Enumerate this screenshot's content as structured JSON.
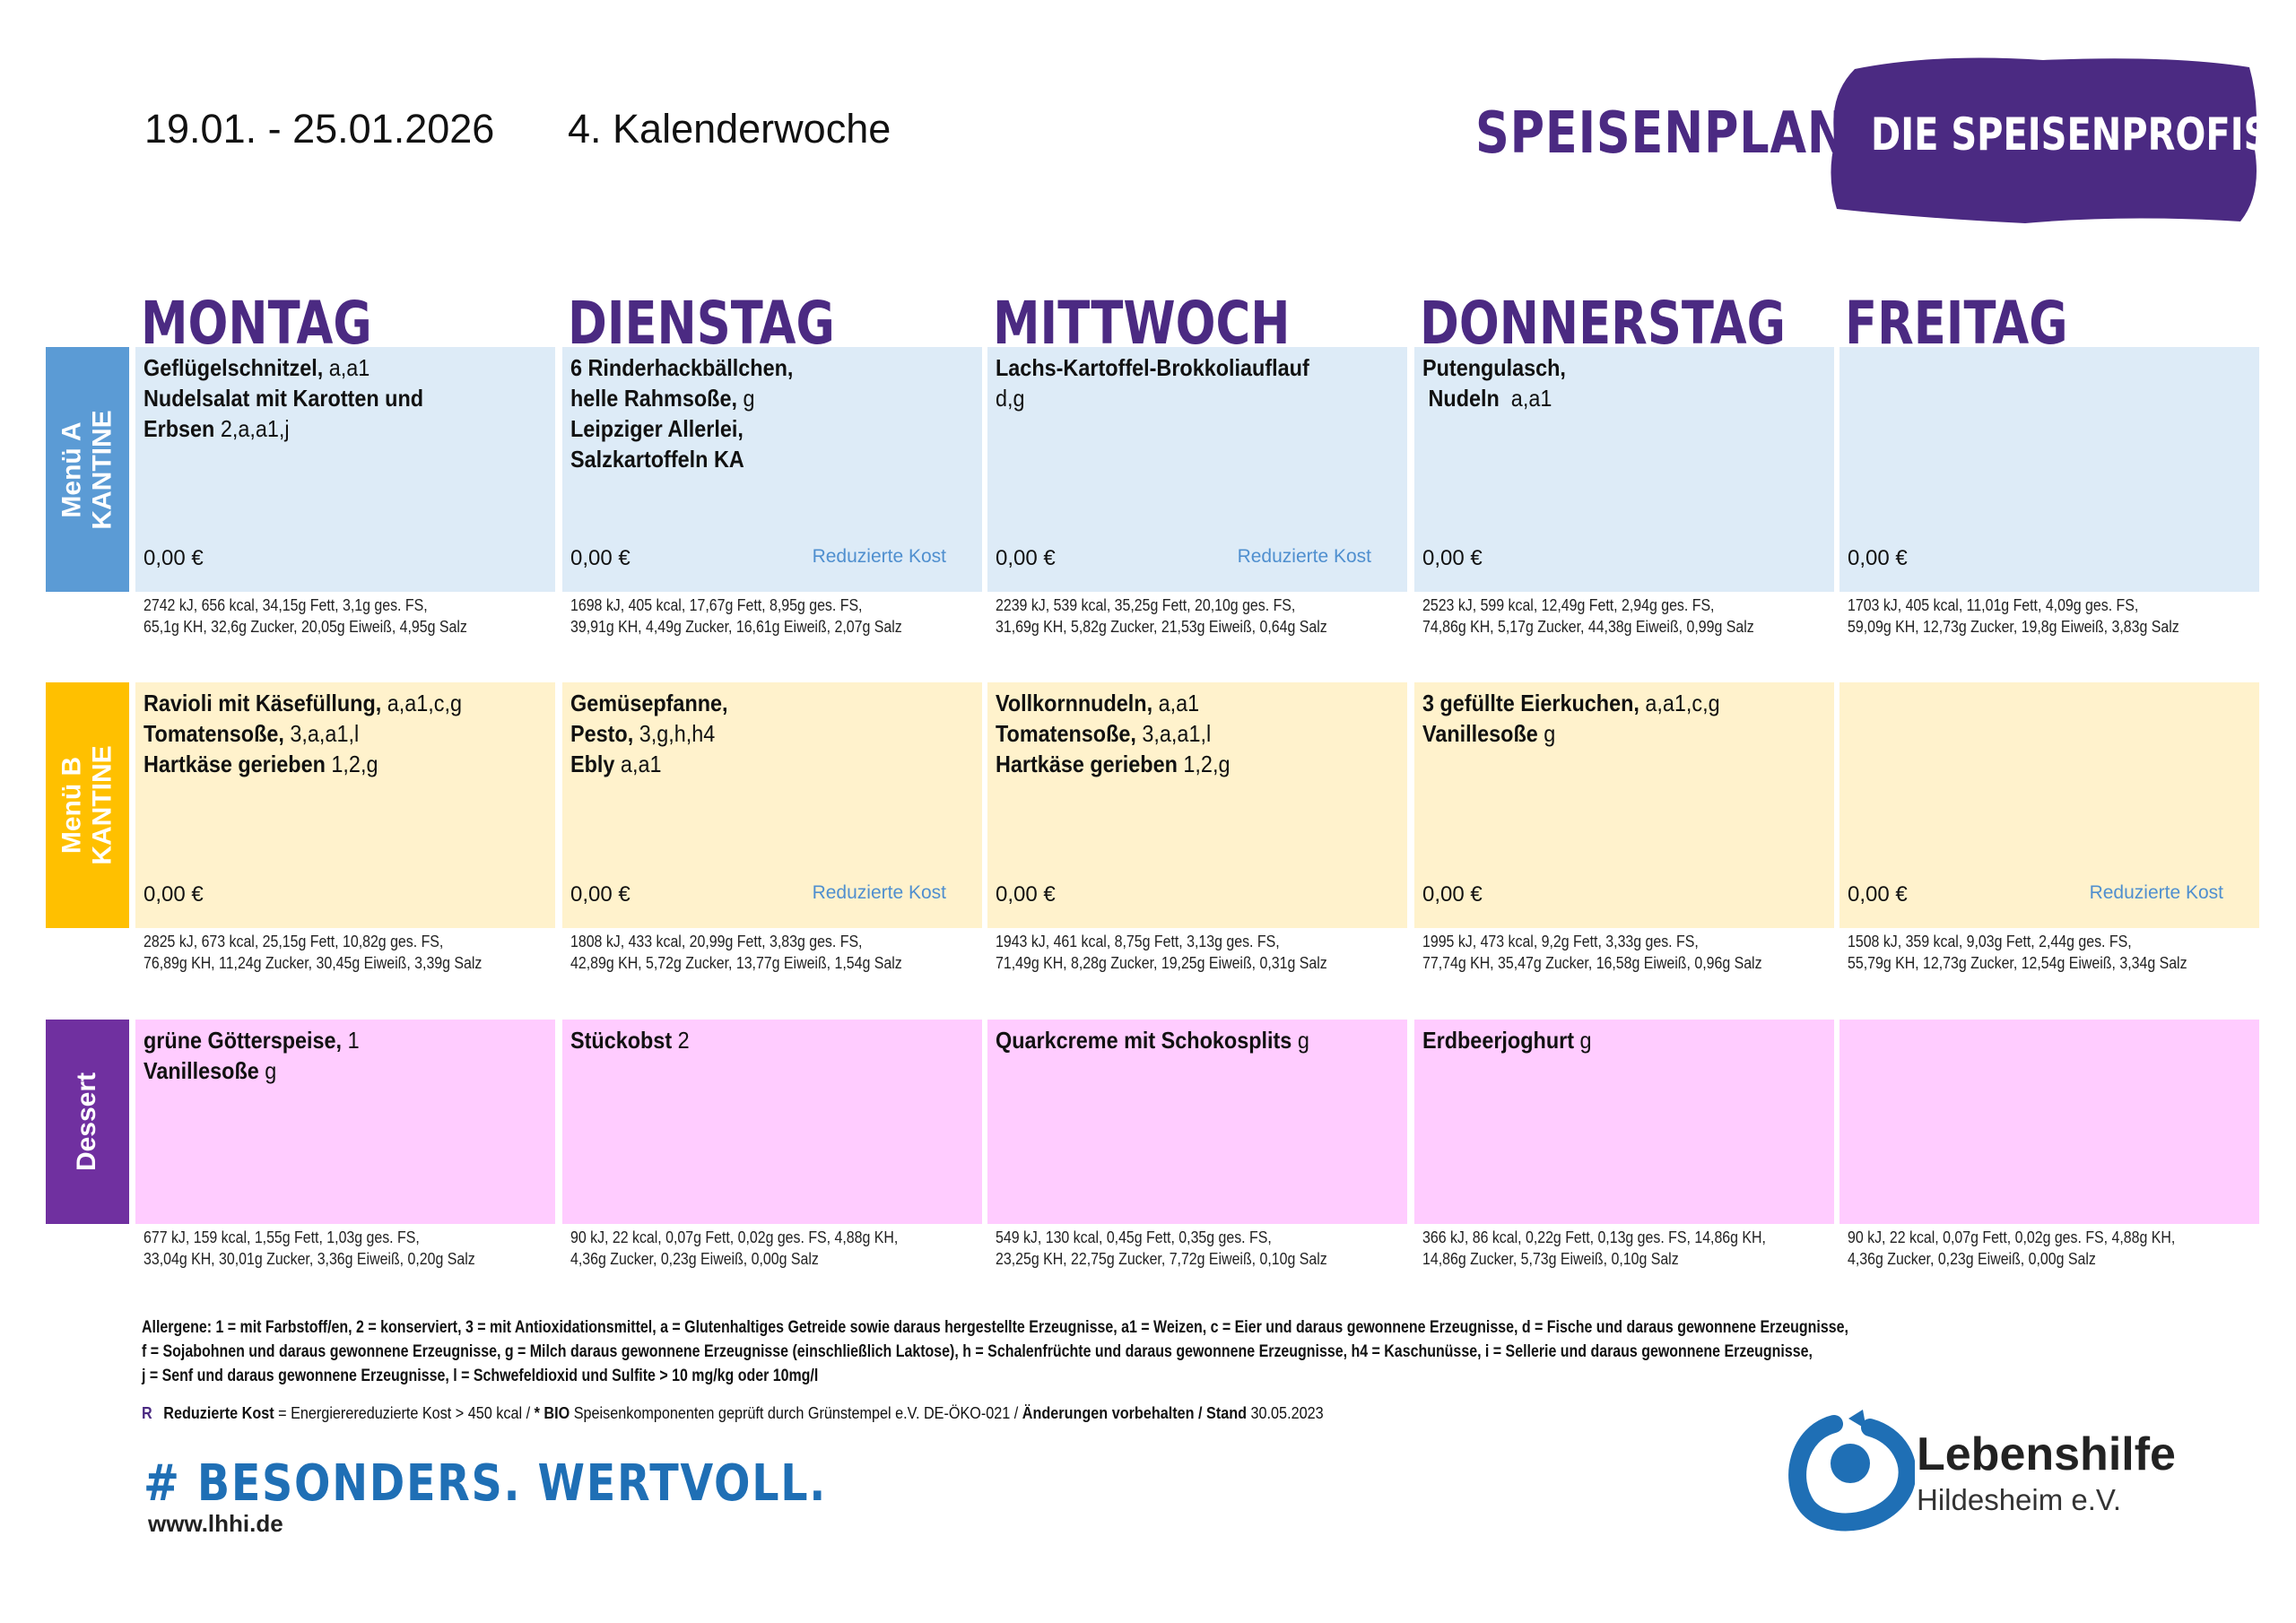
{
  "header": {
    "date_range": "19.01. - 25.01.2026",
    "calendar_week": "4. Kalenderwoche",
    "title": "SPEISENPLAN",
    "brand": "DIE SPEISENPROFIS"
  },
  "colors": {
    "purple": "#4b2a82",
    "menu_a_side": "#5b9bd5",
    "menu_a_bg": "#ddebf7",
    "menu_b_side": "#ffc000",
    "menu_b_bg": "#fff2cc",
    "dessert_side": "#7030a0",
    "dessert_bg": "#ffccff",
    "reduced_text": "#4f8fcf"
  },
  "days": [
    "MONTAG",
    "DIENSTAG",
    "MITTWOCH",
    "DONNERSTAG",
    "FREITAG"
  ],
  "rows": [
    {
      "label": [
        "Menü A",
        "KANTINE"
      ],
      "cells": [
        {
          "lines": [
            [
              {
                "b": "Geflügelschnitzel,"
              },
              {
                "n": " a,a1"
              }
            ],
            [
              {
                "b": "Nudelsalat mit Karotten und"
              }
            ],
            [
              {
                "b": "Erbsen"
              },
              {
                "n": " 2,a,a1,j"
              }
            ]
          ],
          "price": "0,00 €",
          "reduced": "",
          "nutrition": [
            "2742 kJ, 656 kcal, 34,15g Fett, 3,1g ges. FS,",
            "65,1g KH, 32,6g Zucker, 20,05g Eiweiß, 4,95g Salz"
          ]
        },
        {
          "lines": [
            [
              {
                "b": "6 Rinderhackbällchen,"
              }
            ],
            [
              {
                "b": "helle Rahmsoße,"
              },
              {
                "n": " g"
              }
            ],
            [
              {
                "b": "Leipziger Allerlei,"
              }
            ],
            [
              {
                "b": "Salzkartoffeln KA"
              }
            ]
          ],
          "price": "0,00 €",
          "reduced": "Reduzierte Kost",
          "nutrition": [
            "1698 kJ, 405 kcal, 17,67g Fett, 8,95g ges. FS,",
            "39,91g KH, 4,49g Zucker, 16,61g Eiweiß, 2,07g Salz"
          ]
        },
        {
          "lines": [
            [
              {
                "b": "Lachs-Kartoffel-Brokkoliauflauf"
              }
            ],
            [
              {
                "n": "d,g"
              }
            ]
          ],
          "price": "0,00 €",
          "reduced": "Reduzierte Kost",
          "nutrition": [
            "2239 kJ, 539 kcal, 35,25g Fett, 20,10g ges. FS,",
            "31,69g KH, 5,82g Zucker, 21,53g Eiweiß, 0,64g Salz"
          ]
        },
        {
          "lines": [
            [
              {
                "b": "Putengulasch,"
              }
            ],
            [
              {
                "b": " Nudeln"
              },
              {
                "n": "  a,a1"
              }
            ]
          ],
          "price": "0,00 €",
          "reduced": "",
          "nutrition": [
            "2523 kJ, 599 kcal, 12,49g Fett, 2,94g ges. FS,",
            "74,86g KH, 5,17g Zucker, 44,38g Eiweiß, 0,99g Salz"
          ]
        },
        {
          "lines": [],
          "price": "0,00 €",
          "reduced": "",
          "nutrition": [
            "1703 kJ, 405 kcal, 11,01g Fett, 4,09g ges. FS,",
            "59,09g KH, 12,73g Zucker, 19,8g Eiweiß, 3,83g Salz"
          ]
        }
      ]
    },
    {
      "label": [
        "Menü B",
        "KANTINE"
      ],
      "cells": [
        {
          "lines": [
            [
              {
                "b": "Ravioli mit Käsefüllung,"
              },
              {
                "n": " a,a1,c,g"
              }
            ],
            [
              {
                "b": "Tomatensoße,"
              },
              {
                "n": " 3,a,a1,l"
              }
            ],
            [
              {
                "b": "Hartkäse gerieben"
              },
              {
                "n": " 1,2,g"
              }
            ]
          ],
          "price": "0,00 €",
          "reduced": "",
          "nutrition": [
            "2825 kJ, 673 kcal, 25,15g Fett, 10,82g ges. FS,",
            "76,89g KH, 11,24g Zucker, 30,45g Eiweiß, 3,39g Salz"
          ]
        },
        {
          "lines": [
            [
              {
                "b": "Gemüsepfanne,"
              }
            ],
            [
              {
                "b": "Pesto,"
              },
              {
                "n": " 3,g,h,h4"
              }
            ],
            [
              {
                "b": "Ebly"
              },
              {
                "n": " a,a1"
              }
            ]
          ],
          "price": "0,00 €",
          "reduced": "Reduzierte Kost",
          "nutrition": [
            "1808 kJ, 433 kcal, 20,99g Fett, 3,83g ges. FS,",
            "42,89g KH, 5,72g Zucker, 13,77g Eiweiß, 1,54g Salz"
          ]
        },
        {
          "lines": [
            [
              {
                "b": "Vollkornnudeln,"
              },
              {
                "n": " a,a1"
              }
            ],
            [
              {
                "b": "Tomatensoße,"
              },
              {
                "n": " 3,a,a1,l"
              }
            ],
            [
              {
                "b": "Hartkäse gerieben"
              },
              {
                "n": " 1,2,g"
              }
            ]
          ],
          "price": "0,00 €",
          "reduced": "",
          "nutrition": [
            "1943 kJ, 461 kcal, 8,75g Fett, 3,13g ges. FS,",
            "71,49g KH, 8,28g Zucker, 19,25g Eiweiß, 0,31g Salz"
          ]
        },
        {
          "lines": [
            [
              {
                "b": "3 gefüllte Eierkuchen,"
              },
              {
                "n": " a,a1,c,g"
              }
            ],
            [
              {
                "b": "Vanillesoße"
              },
              {
                "n": " g"
              }
            ]
          ],
          "price": "0,00 €",
          "reduced": "",
          "nutrition": [
            "1995 kJ, 473 kcal, 9,2g Fett, 3,33g ges. FS,",
            "77,74g KH, 35,47g Zucker, 16,58g Eiweiß, 0,96g Salz"
          ]
        },
        {
          "lines": [],
          "price": "0,00 €",
          "reduced": "Reduzierte Kost",
          "nutrition": [
            "1508 kJ, 359 kcal, 9,03g Fett, 2,44g ges. FS,",
            "55,79g KH, 12,73g Zucker, 12,54g Eiweiß, 3,34g Salz"
          ]
        }
      ]
    },
    {
      "label": [
        "Dessert"
      ],
      "cells": [
        {
          "lines": [
            [
              {
                "b": "grüne Götterspeise,"
              },
              {
                "n": " 1"
              }
            ],
            [
              {
                "b": "Vanillesoße"
              },
              {
                "n": " g"
              }
            ]
          ],
          "price": "",
          "reduced": "",
          "nutrition": [
            "677 kJ, 159 kcal, 1,55g Fett, 1,03g ges. FS,",
            "33,04g KH, 30,01g Zucker, 3,36g Eiweiß, 0,20g Salz"
          ]
        },
        {
          "lines": [
            [
              {
                "b": "Stückobst"
              },
              {
                "n": " 2"
              }
            ]
          ],
          "price": "",
          "reduced": "",
          "nutrition": [
            "90 kJ, 22 kcal, 0,07g Fett, 0,02g ges. FS, 4,88g KH,",
            "4,36g Zucker, 0,23g Eiweiß, 0,00g Salz"
          ]
        },
        {
          "lines": [
            [
              {
                "b": "Quarkcreme mit Schokosplits"
              },
              {
                "n": " g"
              }
            ]
          ],
          "price": "",
          "reduced": "",
          "nutrition": [
            "549 kJ, 130 kcal, 0,45g Fett, 0,35g ges. FS,",
            "23,25g KH, 22,75g Zucker, 7,72g Eiweiß, 0,10g Salz"
          ]
        },
        {
          "lines": [
            [
              {
                "b": "Erdbeerjoghurt"
              },
              {
                "n": " g"
              }
            ]
          ],
          "price": "",
          "reduced": "",
          "nutrition": [
            "366 kJ, 86 kcal, 0,22g Fett, 0,13g ges. FS, 14,86g KH,",
            "14,86g Zucker, 5,73g Eiweiß, 0,10g Salz"
          ]
        },
        {
          "lines": [],
          "price": "",
          "reduced": "",
          "nutrition": [
            "90 kJ, 22 kcal, 0,07g Fett, 0,02g ges. FS, 4,88g KH,",
            "4,36g Zucker, 0,23g Eiweiß, 0,00g Salz"
          ]
        }
      ]
    }
  ],
  "footer": {
    "allergens": [
      "Allergene: 1 = mit Farbstoff/en, 2 = konserviert, 3 = mit Antioxidationsmittel, a = Glutenhaltiges Getreide sowie daraus hergestellte Erzeugnisse, a1 = Weizen, c = Eier und daraus gewonnene Erzeugnisse, d = Fische und daraus gewonnene Erzeugnisse,",
      "f = Sojabohnen und daraus gewonnene Erzeugnisse, g = Milch daraus gewonnene Erzeugnisse (einschließlich Laktose), h = Schalenfrüchte und daraus gewonnene Erzeugnisse, h4 = Kaschunüsse, i = Sellerie und daraus gewonnene Erzeugnisse,",
      "j = Senf und daraus gewonnene Erzeugnisse, l = Schwefeldioxid und Sulfite > 10 mg/kg oder 10mg/l"
    ],
    "legend": {
      "marker": "R",
      "reduced_label": "Reduzierte Kost",
      "reduced_text": " = Energierereduzierte Kost > 450 kcal / ",
      "bio_label": "* BIO",
      "bio_text": " Speisenkomponenten geprüft durch Grünstempel e.V. DE-ÖKO-021 / ",
      "changes_label": "Änderungen vorbehalten / Stand",
      "date": " 30.05.2023"
    },
    "slogan": "# BESONDERS. WERTVOLL.",
    "website": "www.lhhi.de",
    "logo_name": "Lebenshilfe",
    "logo_sub": "Hildesheim e.V."
  }
}
